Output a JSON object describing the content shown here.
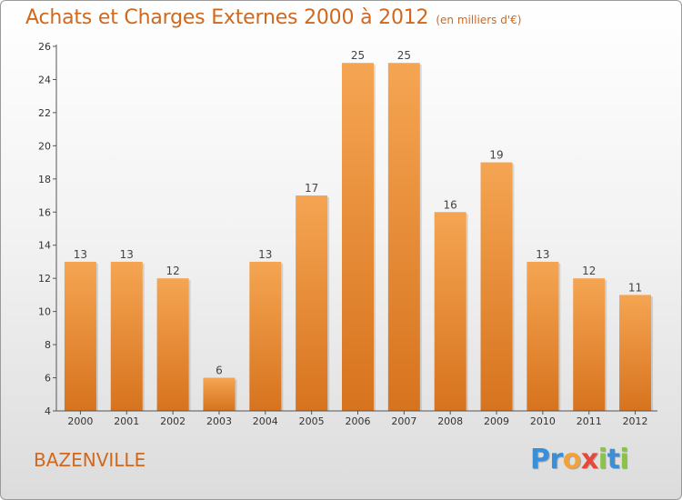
{
  "title": "Achats et Charges Externes 2000 à 2012",
  "subtitle": "(en milliers d'€)",
  "location": "BAZENVILLE",
  "logo": {
    "letters": [
      "P",
      "r",
      "o",
      "x",
      "i",
      "t",
      "i"
    ],
    "colors": [
      "#3a8fd9",
      "#3a8fd9",
      "#f2a23a",
      "#e8473c",
      "#8bc34a",
      "#3a8fd9",
      "#8bc34a"
    ]
  },
  "colors": {
    "bar_top": "#f5a552",
    "bar_bottom": "#d7731e",
    "text": "#d0681d"
  },
  "chart_data": {
    "type": "bar",
    "categories": [
      "2000",
      "2001",
      "2002",
      "2003",
      "2004",
      "2005",
      "2006",
      "2007",
      "2008",
      "2009",
      "2010",
      "2011",
      "2012"
    ],
    "values": [
      13,
      13,
      12,
      6,
      13,
      17,
      25,
      25,
      16,
      19,
      13,
      12,
      11
    ],
    "title": "Achats et Charges Externes 2000 à 2012",
    "subtitle": "(en milliers d'€)",
    "ylim": [
      4,
      26
    ],
    "yticks": [
      4,
      6,
      8,
      10,
      12,
      14,
      16,
      18,
      20,
      22,
      24,
      26
    ],
    "grid": false,
    "data_labels": true
  }
}
